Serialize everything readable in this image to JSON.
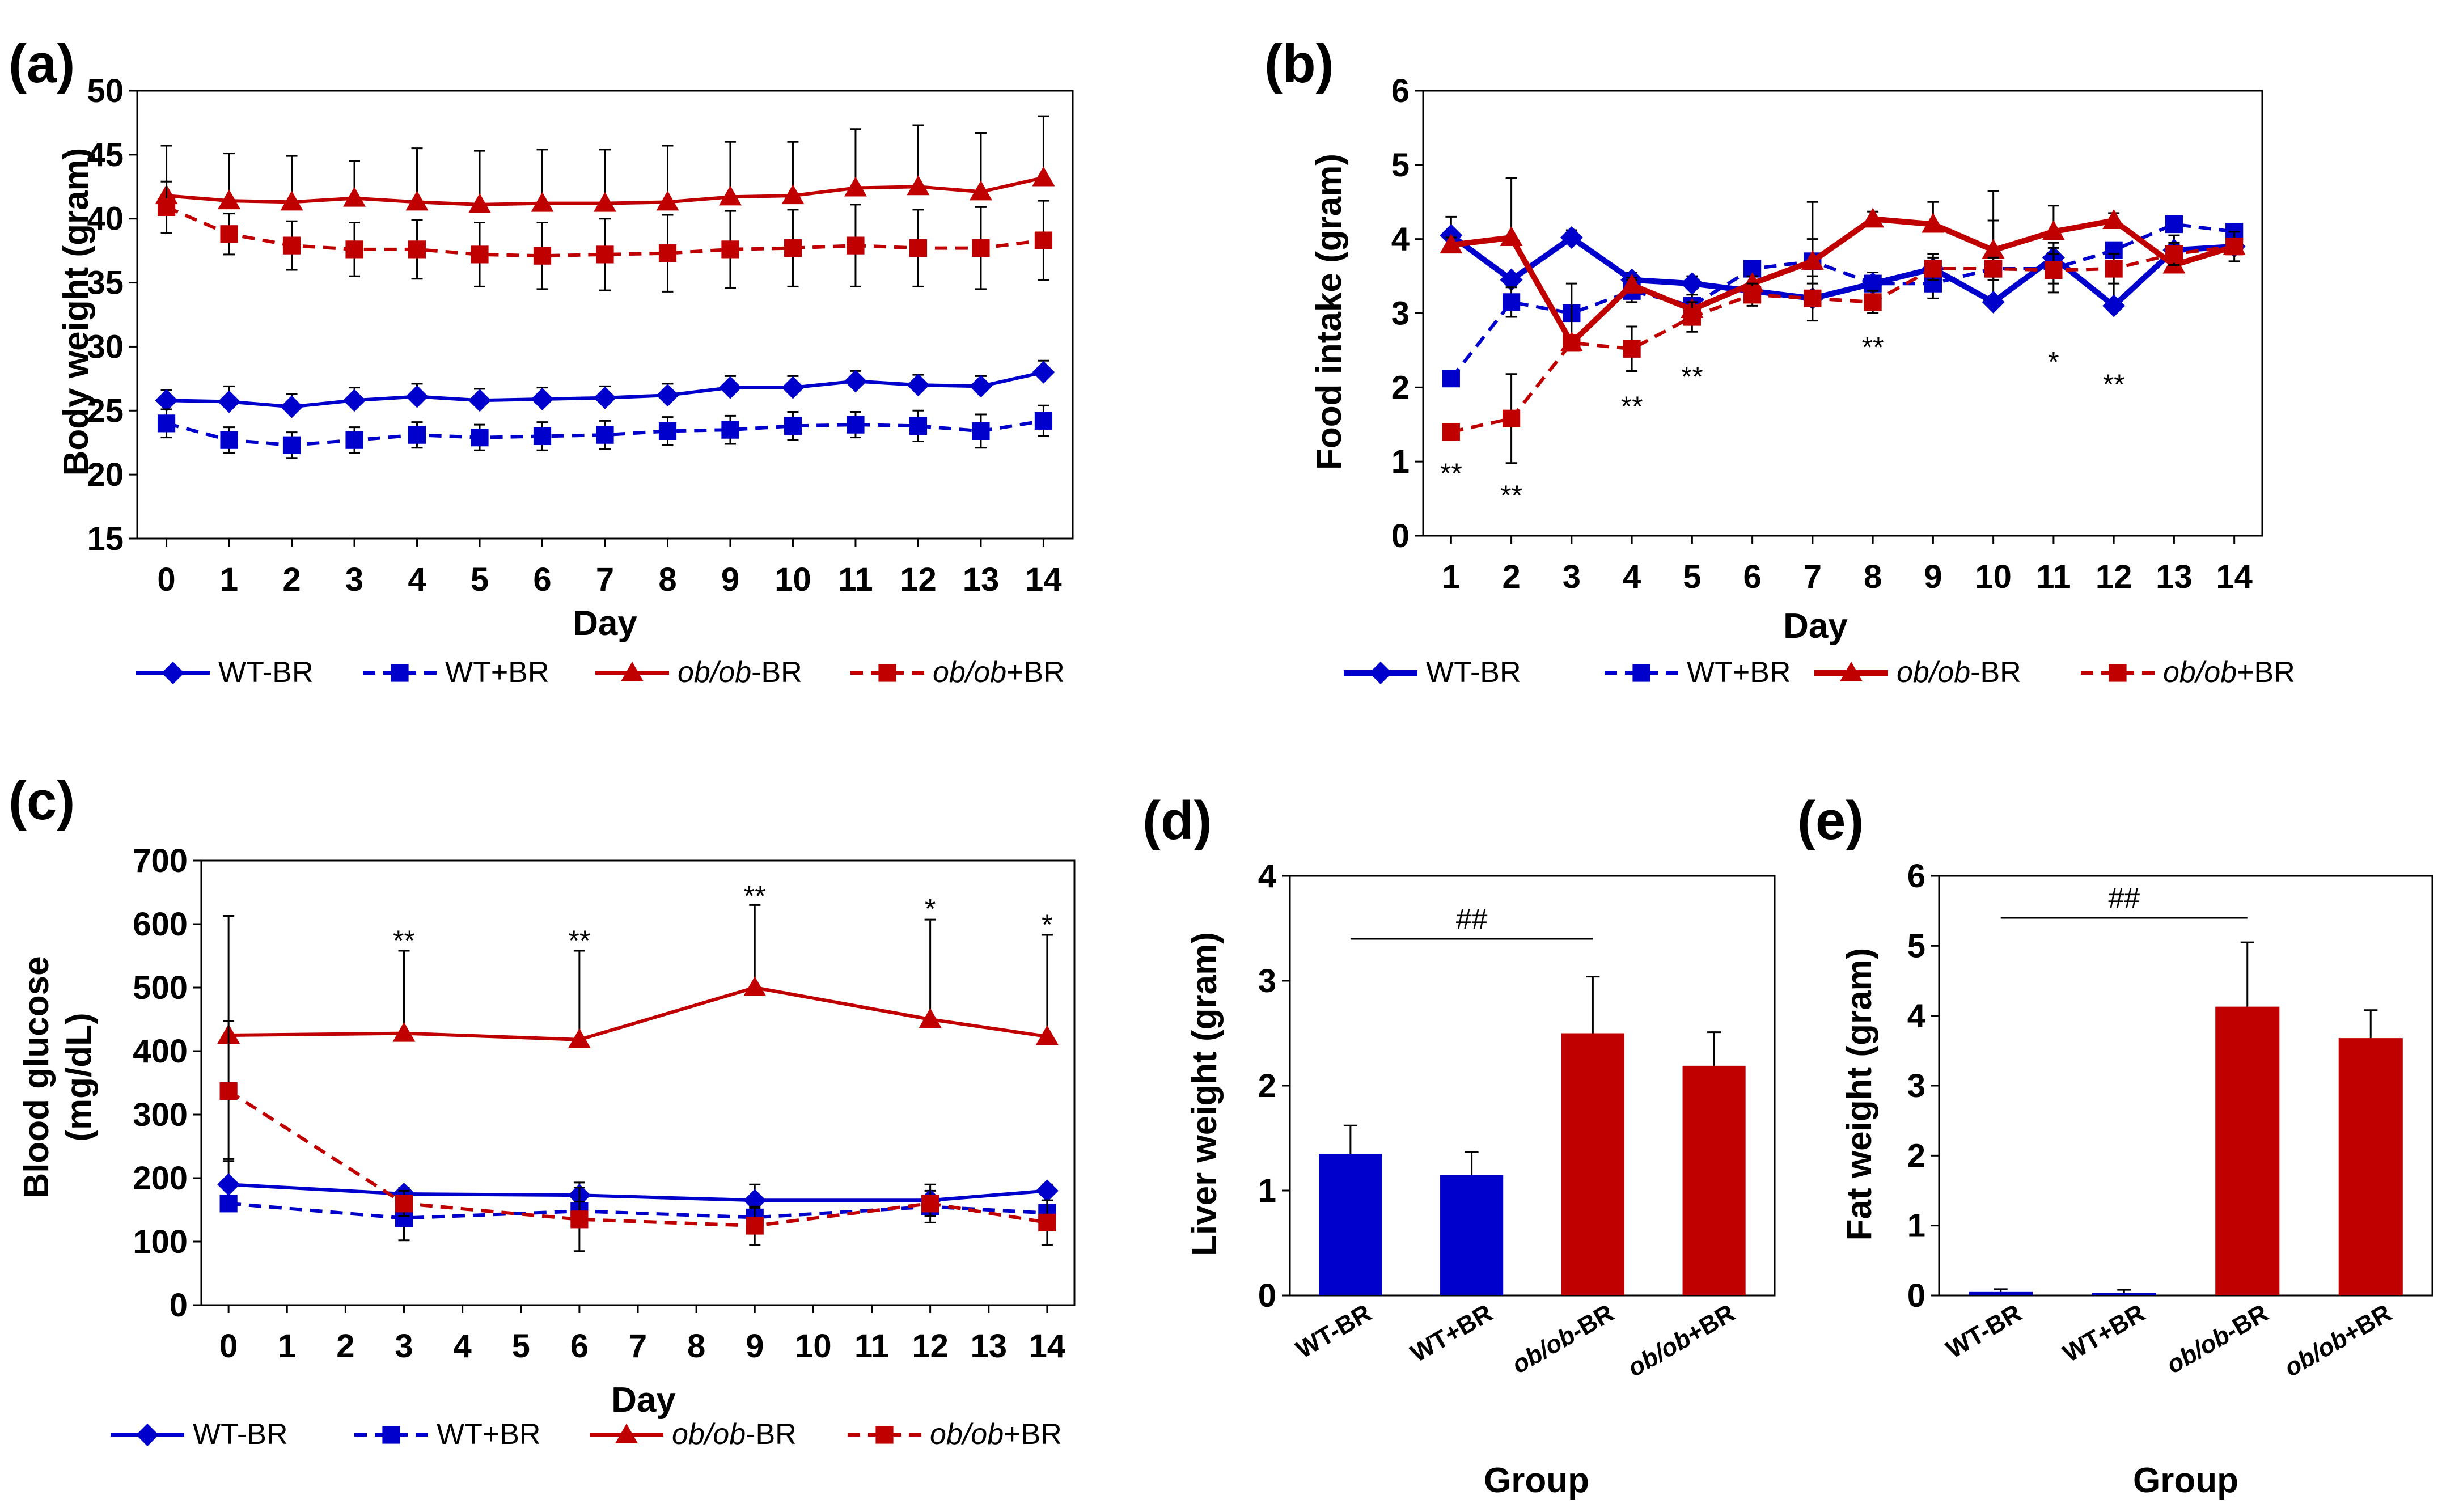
{
  "colors": {
    "blue": "#0000cc",
    "red": "#c00000",
    "axis": "#000000"
  },
  "series_names": [
    "WT-BR",
    "WT+BR",
    "ob/ob-BR",
    "ob/ob+BR"
  ],
  "chart_data": [
    {
      "panel": "(a)",
      "type": "line",
      "xlabel": "Day",
      "ylabel": "Body weight (gram)",
      "ylim": [
        15,
        50
      ],
      "ytick_step": 5,
      "x": [
        0,
        1,
        2,
        3,
        4,
        5,
        6,
        7,
        8,
        9,
        10,
        11,
        12,
        13,
        14
      ],
      "series": [
        {
          "name": "WT-BR",
          "color": "blue",
          "dash": false,
          "marker": "diamond",
          "values": [
            25.8,
            25.7,
            25.3,
            25.8,
            26.1,
            25.8,
            25.9,
            26.0,
            26.2,
            26.8,
            26.8,
            27.3,
            27.0,
            26.9,
            28.0
          ],
          "err": [
            0.8,
            1.2,
            1.0,
            1.0,
            1.0,
            0.9,
            0.9,
            0.9,
            0.9,
            0.9,
            0.9,
            0.8,
            0.8,
            0.8,
            0.9
          ]
        },
        {
          "name": "WT+BR",
          "color": "blue",
          "dash": true,
          "marker": "square",
          "values": [
            24.0,
            22.7,
            22.3,
            22.7,
            23.1,
            22.9,
            23.0,
            23.1,
            23.4,
            23.5,
            23.8,
            23.9,
            23.8,
            23.4,
            24.2
          ],
          "err": [
            1.1,
            1.0,
            1.0,
            1.0,
            1.0,
            1.0,
            1.1,
            1.1,
            1.1,
            1.1,
            1.1,
            1.0,
            1.2,
            1.3,
            1.2
          ]
        },
        {
          "name": "ob/ob-BR",
          "color": "red",
          "dash": false,
          "marker": "triangle",
          "values": [
            41.8,
            41.4,
            41.3,
            41.6,
            41.3,
            41.1,
            41.2,
            41.2,
            41.3,
            41.7,
            41.8,
            42.4,
            42.5,
            42.1,
            43.2
          ],
          "err": [
            3.9,
            3.7,
            3.6,
            2.9,
            4.2,
            4.2,
            4.2,
            4.2,
            4.4,
            4.3,
            4.2,
            4.6,
            4.8,
            4.6,
            4.8
          ]
        },
        {
          "name": "ob/ob+BR",
          "color": "red",
          "dash": true,
          "marker": "square",
          "values": [
            40.9,
            38.8,
            37.9,
            37.6,
            37.6,
            37.2,
            37.1,
            37.2,
            37.3,
            37.6,
            37.7,
            37.9,
            37.7,
            37.7,
            38.3
          ],
          "err": [
            2.0,
            1.6,
            1.9,
            2.1,
            2.3,
            2.5,
            2.6,
            2.8,
            3.0,
            3.0,
            3.0,
            3.2,
            3.0,
            3.2,
            3.1
          ]
        }
      ],
      "annotations": []
    },
    {
      "panel": "(b)",
      "type": "line",
      "xlabel": "Day",
      "ylabel": "Food intake (gram)",
      "ylim": [
        0,
        6
      ],
      "ytick_step": 1,
      "x": [
        1,
        2,
        3,
        4,
        5,
        6,
        7,
        8,
        9,
        10,
        11,
        12,
        13,
        14
      ],
      "series": [
        {
          "name": "WT-BR",
          "color": "blue",
          "dash": false,
          "marker": "diamond",
          "values": [
            4.05,
            3.45,
            4.02,
            3.45,
            3.4,
            3.3,
            3.2,
            3.4,
            3.6,
            3.15,
            3.75,
            3.1,
            3.85,
            3.9
          ],
          "err": [
            0.25,
            0.0,
            0.1,
            0.1,
            0.1,
            0.1,
            0.1,
            0.15,
            0.2,
            1.5,
            0.2,
            0.45,
            0.2,
            0.3
          ]
        },
        {
          "name": "WT+BR",
          "color": "blue",
          "dash": true,
          "marker": "square",
          "values": [
            2.12,
            3.15,
            3.0,
            3.3,
            3.1,
            3.6,
            3.7,
            3.4,
            3.4,
            3.6,
            3.6,
            3.85,
            4.2,
            4.1
          ],
          "err": [
            0.1,
            0.2,
            0.1,
            0.15,
            0.15,
            0.1,
            0.3,
            0.1,
            0.2,
            0.15,
            0.2,
            0.1,
            0.1,
            0.1
          ]
        },
        {
          "name": "ob/ob-BR",
          "color": "red",
          "dash": false,
          "marker": "triangle",
          "values": [
            3.92,
            4.02,
            2.6,
            3.38,
            3.05,
            3.4,
            3.7,
            4.27,
            4.2,
            3.85,
            4.1,
            4.25,
            3.65,
            3.9
          ],
          "err": [
            0.1,
            0.8,
            0.8,
            0.1,
            0.1,
            0.1,
            0.8,
            0.1,
            0.3,
            0.4,
            0.35,
            0.1,
            0.3,
            0.2
          ]
        },
        {
          "name": "ob/ob+BR",
          "color": "red",
          "dash": true,
          "marker": "square",
          "values": [
            1.4,
            1.58,
            2.6,
            2.52,
            2.95,
            3.25,
            3.2,
            3.15,
            3.6,
            3.6,
            3.58,
            3.6,
            3.8,
            3.9
          ],
          "err": [
            0.05,
            0.6,
            0.05,
            0.3,
            0.2,
            0.15,
            0.3,
            0.15,
            0.15,
            0.15,
            0.3,
            0.2,
            0.15,
            0.2
          ]
        }
      ],
      "annotations": [
        {
          "x": 1,
          "y": 0.85,
          "text": "**"
        },
        {
          "x": 2,
          "y": 0.55,
          "text": "**"
        },
        {
          "x": 4,
          "y": 1.75,
          "text": "**"
        },
        {
          "x": 5,
          "y": 2.15,
          "text": "**"
        },
        {
          "x": 8,
          "y": 2.55,
          "text": "**"
        },
        {
          "x": 11,
          "y": 2.35,
          "text": "*"
        },
        {
          "x": 12,
          "y": 2.05,
          "text": "**"
        }
      ]
    },
    {
      "panel": "(c)",
      "type": "line",
      "xlabel": "Day",
      "ylabel_lines": [
        "Blood glucose",
        "(mg/dL)"
      ],
      "ylim": [
        0,
        700
      ],
      "ytick_step": 100,
      "x": [
        0,
        1,
        2,
        3,
        4,
        5,
        6,
        7,
        8,
        9,
        10,
        11,
        12,
        13,
        14
      ],
      "series": [
        {
          "name": "WT-BR",
          "color": "blue",
          "dash": false,
          "marker": "diamond",
          "points": [
            [
              0,
              190
            ],
            [
              3,
              175
            ],
            [
              6,
              173
            ],
            [
              9,
              165
            ],
            [
              12,
              165
            ],
            [
              14,
              180
            ]
          ],
          "err": [
            40,
            10,
            20,
            25,
            15,
            10
          ]
        },
        {
          "name": "WT+BR",
          "color": "blue",
          "dash": true,
          "marker": "square",
          "points": [
            [
              0,
              160
            ],
            [
              3,
              137
            ],
            [
              6,
              148
            ],
            [
              9,
              138
            ],
            [
              12,
              155
            ],
            [
              14,
              145
            ]
          ],
          "err": [
            10,
            35,
            15,
            15,
            15,
            20
          ]
        },
        {
          "name": "ob/ob-BR",
          "color": "red",
          "dash": false,
          "marker": "triangle",
          "points": [
            [
              0,
              425
            ],
            [
              3,
              428
            ],
            [
              6,
              418
            ],
            [
              9,
              500
            ],
            [
              12,
              450
            ],
            [
              14,
              423
            ]
          ],
          "err": [
            188,
            130,
            140,
            130,
            157,
            160
          ]
        },
        {
          "name": "ob/ob+BR",
          "color": "red",
          "dash": true,
          "marker": "square",
          "points": [
            [
              0,
              337
            ],
            [
              3,
              160
            ],
            [
              6,
              135
            ],
            [
              9,
              125
            ],
            [
              12,
              160
            ],
            [
              14,
              130
            ]
          ],
          "err": [
            110,
            20,
            50,
            30,
            30,
            35
          ]
        }
      ],
      "annotations": [
        {
          "x": 3,
          "y": 575,
          "text": "**"
        },
        {
          "x": 6,
          "y": 575,
          "text": "**"
        },
        {
          "x": 9,
          "y": 645,
          "text": "**"
        },
        {
          "x": 12,
          "y": 625,
          "text": "*"
        },
        {
          "x": 14,
          "y": 600,
          "text": "*"
        }
      ]
    },
    {
      "panel": "(d)",
      "type": "bar",
      "xlabel": "Group",
      "ylabel": "Liver weight (gram)",
      "ylim": [
        0,
        4
      ],
      "ytick_step": 1,
      "categories": [
        "WT-BR",
        "WT+BR",
        "ob/ob-BR",
        "ob/ob+BR"
      ],
      "values": [
        1.35,
        1.15,
        2.5,
        2.19
      ],
      "err": [
        0.27,
        0.22,
        0.54,
        0.32
      ],
      "bar_colors": [
        "blue",
        "blue",
        "red",
        "red"
      ],
      "bracket": {
        "from": 0,
        "to": 2,
        "y": 3.4,
        "text": "##"
      }
    },
    {
      "panel": "(e)",
      "type": "bar",
      "xlabel": "Group",
      "ylabel": "Fat weight (gram)",
      "ylim": [
        0,
        6
      ],
      "ytick_step": 1,
      "categories": [
        "WT-BR",
        "WT+BR",
        "ob/ob-BR",
        "ob/ob+BR"
      ],
      "values": [
        0.05,
        0.04,
        4.13,
        3.68
      ],
      "err": [
        0.04,
        0.04,
        0.92,
        0.4
      ],
      "bar_colors": [
        "blue",
        "blue",
        "red",
        "red"
      ],
      "bracket": {
        "from": 0,
        "to": 2,
        "y": 5.4,
        "text": "##"
      }
    }
  ]
}
